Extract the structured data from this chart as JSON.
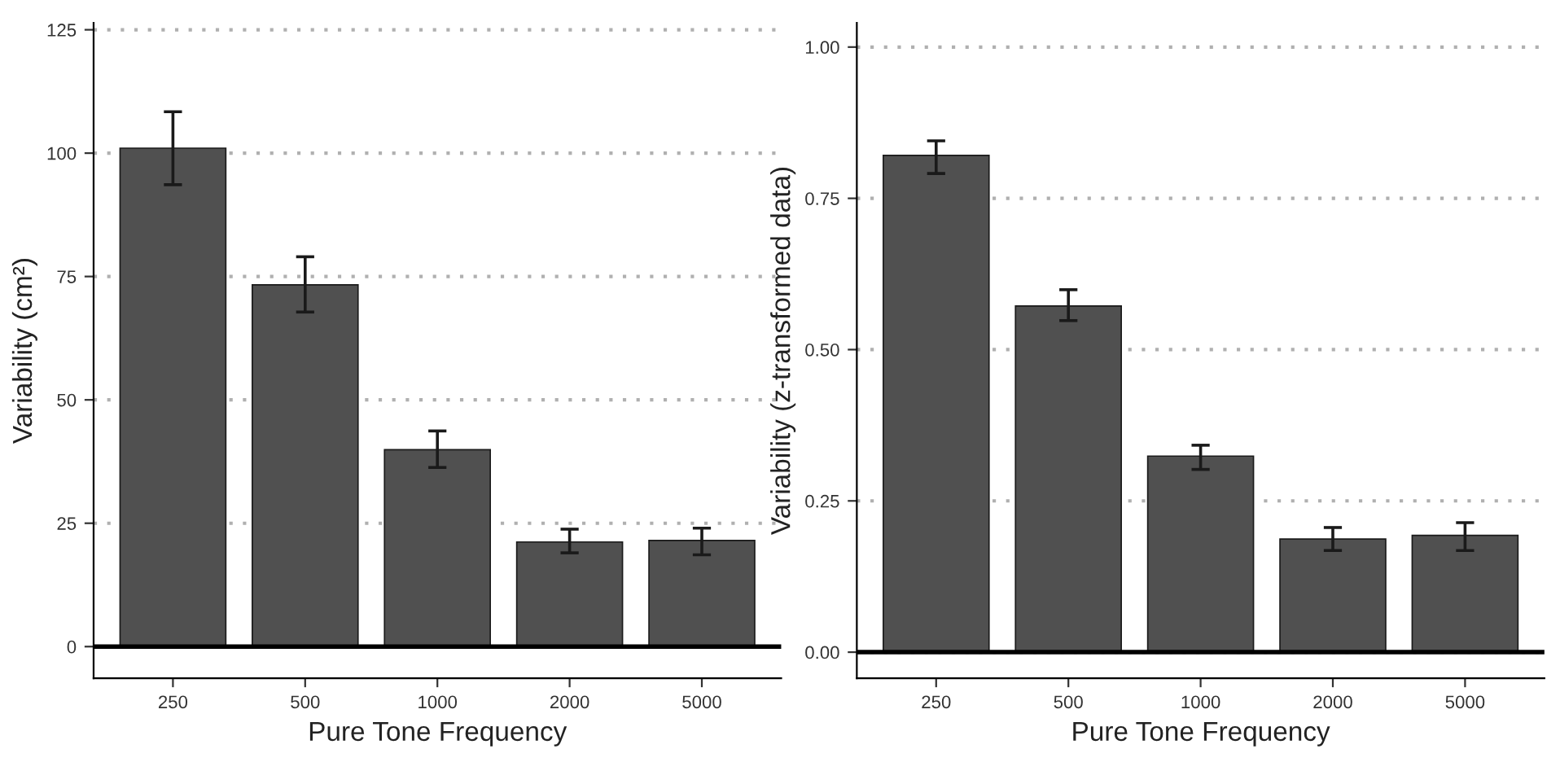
{
  "chart_data": [
    {
      "type": "bar",
      "xlabel": "Pure Tone Frequency",
      "ylabel": "Variability (cm²)",
      "categories": [
        "250",
        "500",
        "1000",
        "2000",
        "5000"
      ],
      "values": [
        101,
        73.3,
        39.9,
        21.2,
        21.5
      ],
      "color": "#505050",
      "errors": [
        [
          93.6,
          108.4
        ],
        [
          67.8,
          79
        ],
        [
          36.3,
          43.7
        ],
        [
          19,
          23.8
        ],
        [
          18.6,
          24
        ]
      ],
      "ylim": [
        -6.4,
        126.4
      ],
      "yticks": [
        0,
        25,
        50,
        75,
        100,
        125
      ],
      "grid": "y",
      "ref_lines": [
        {
          "axis": "y",
          "value": 0,
          "color": "#000000"
        }
      ]
    },
    {
      "type": "bar",
      "xlabel": "Pure Tone Frequency",
      "ylabel": "Variability (z-transformed data)",
      "categories": [
        "250",
        "500",
        "1000",
        "2000",
        "5000"
      ],
      "values": [
        0.821,
        0.572,
        0.324,
        0.187,
        0.193
      ],
      "color": "#505050",
      "errors": [
        [
          0.791,
          0.845
        ],
        [
          0.548,
          0.599
        ],
        [
          0.302,
          0.342
        ],
        [
          0.168,
          0.206
        ],
        [
          0.168,
          0.214
        ]
      ],
      "ylim": [
        -0.043,
        1.04
      ],
      "yticks": [
        {
          "value": 0,
          "label": "0.00"
        },
        {
          "value": 0.25,
          "label": "0.25"
        },
        {
          "value": 0.5,
          "label": "0.50"
        },
        {
          "value": 0.75,
          "label": "0.75"
        },
        {
          "value": 1,
          "label": "1.00"
        }
      ],
      "grid": "y",
      "ref_lines": [
        {
          "axis": "y",
          "value": 0,
          "color": "#000000"
        }
      ]
    }
  ]
}
